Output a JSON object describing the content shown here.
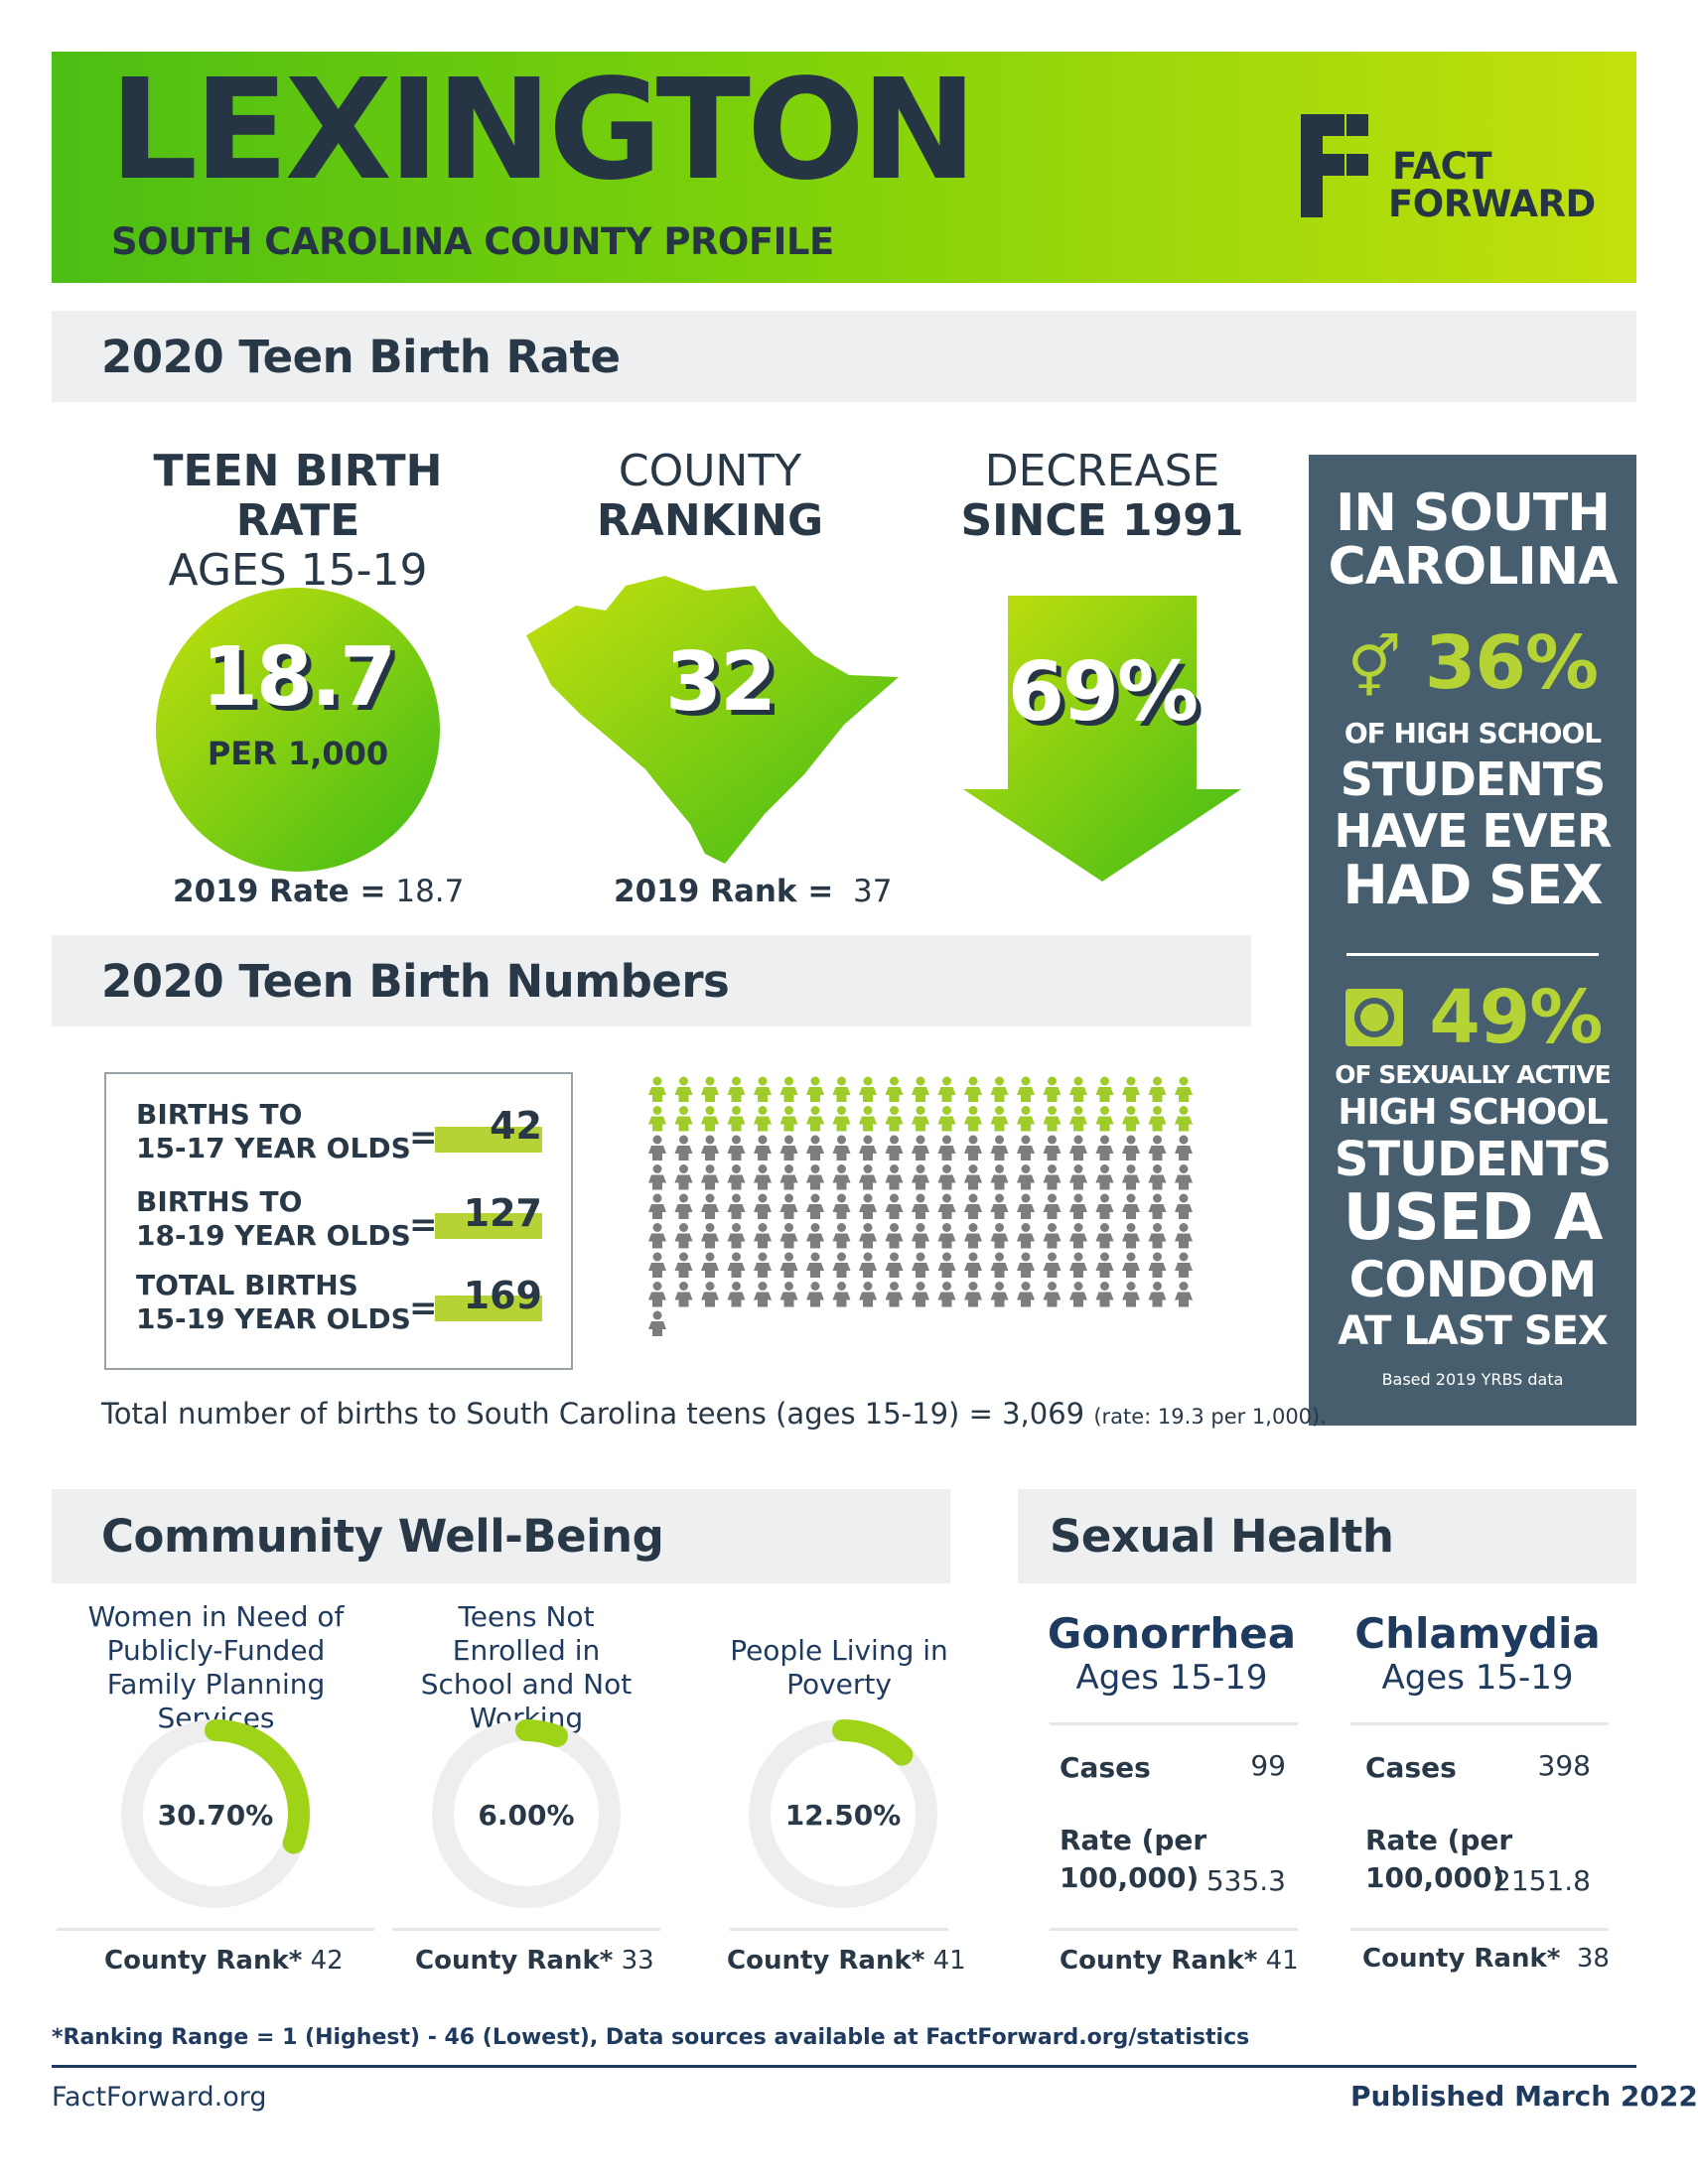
{
  "header": {
    "title": "LEXINGTON",
    "subtitle": "SOUTH CAROLINA COUNTY PROFILE",
    "logo_line1": "FACT",
    "logo_line2": "FORWARD"
  },
  "teen_birth_rate": {
    "section_title": "2020 Teen Birth Rate",
    "rate_heading_1": "TEEN BIRTH RATE",
    "rate_heading_2": "AGES 15-19",
    "rate_value": "18.7",
    "rate_unit": "PER 1,000",
    "prior_rate_label": "2019 Rate =",
    "prior_rate_value": "18.7",
    "rank_heading_1": "COUNTY",
    "rank_heading_2": "RANKING",
    "rank_value": "32",
    "prior_rank_label": "2019 Rank =",
    "prior_rank_value": "37",
    "decrease_heading_1": "DECREASE",
    "decrease_heading_2": "SINCE 1991",
    "decrease_value": "69%"
  },
  "state_panel": {
    "heading_1": "IN SOUTH",
    "heading_2": "CAROLINA",
    "stat1_value": "36%",
    "stat1_line1": "OF HIGH SCHOOL",
    "stat1_line2": "STUDENTS",
    "stat1_line3": "HAVE EVER",
    "stat1_line4": "HAD SEX",
    "stat2_value": "49%",
    "stat2_line1": "OF SEXUALLY ACTIVE",
    "stat2_line2": "HIGH SCHOOL",
    "stat2_line3": "STUDENTS",
    "stat2_line4": "USED A",
    "stat2_line5": "CONDOM",
    "stat2_line6": "AT LAST SEX",
    "source": "Based 2019 YRBS data"
  },
  "birth_numbers": {
    "section_title": "2020 Teen Birth Numbers",
    "rows": [
      {
        "line1": "BIRTHS TO",
        "line2": "15-17 YEAR OLDS",
        "eq": "=",
        "value": "42"
      },
      {
        "line1": "BIRTHS TO",
        "line2": "18-19 YEAR OLDS",
        "eq": "=",
        "value": "127"
      },
      {
        "line1": "TOTAL BIRTHS",
        "line2": "15-19 YEAR OLDS",
        "eq": "=",
        "value": "169"
      }
    ],
    "pictogram_green": 42,
    "pictogram_gray": 127,
    "pictogram_colors": {
      "green": "#9fcc2a",
      "gray": "#7d7d7d"
    },
    "total_text": "Total number of births to South Carolina teens (ages 15-19) = 3,069",
    "total_rate": "(rate: 19.3 per 1,000)."
  },
  "community": {
    "section_title": "Community Well-Being",
    "items": [
      {
        "title": "Women in Need of Publicly-Funded Family Planning Services",
        "value": "30.70%",
        "fraction": 0.307,
        "rank_label": "County Rank*",
        "rank": "42"
      },
      {
        "title": "Teens Not Enrolled in School and Not Working",
        "value": "6.00%",
        "fraction": 0.06,
        "rank_label": "County Rank*",
        "rank": "33"
      },
      {
        "title": "People Living in Poverty",
        "value": "12.50%",
        "fraction": 0.125,
        "rank_label": "County Rank*",
        "rank": "41"
      }
    ]
  },
  "sexual_health": {
    "section_title": "Sexual Health",
    "diseases": [
      {
        "name": "Gonorrhea",
        "ages": "Ages 15-19",
        "cases_label": "Cases",
        "cases": "99",
        "rate_label_1": "Rate (per",
        "rate_label_2": "100,000)",
        "rate": "535.3",
        "rank_label": "County Rank*",
        "rank": "41"
      },
      {
        "name": "Chlamydia",
        "ages": "Ages 15-19",
        "cases_label": "Cases",
        "cases": "398",
        "rate_label_1": "Rate (per",
        "rate_label_2": "100,000)",
        "rate": "2151.8",
        "rank_label": "County Rank*",
        "rank": "38"
      }
    ]
  },
  "footer": {
    "note": "*Ranking Range = 1 (Highest) - 46 (Lowest), Data sources available at FactForward.org/statistics",
    "site": "FactForward.org",
    "published": "Published March 2022"
  },
  "colors": {
    "navy": "#283847",
    "lime": "#b5d334",
    "green": "#4cbe14",
    "panel": "#475e6e",
    "track": "#eeeeee"
  }
}
